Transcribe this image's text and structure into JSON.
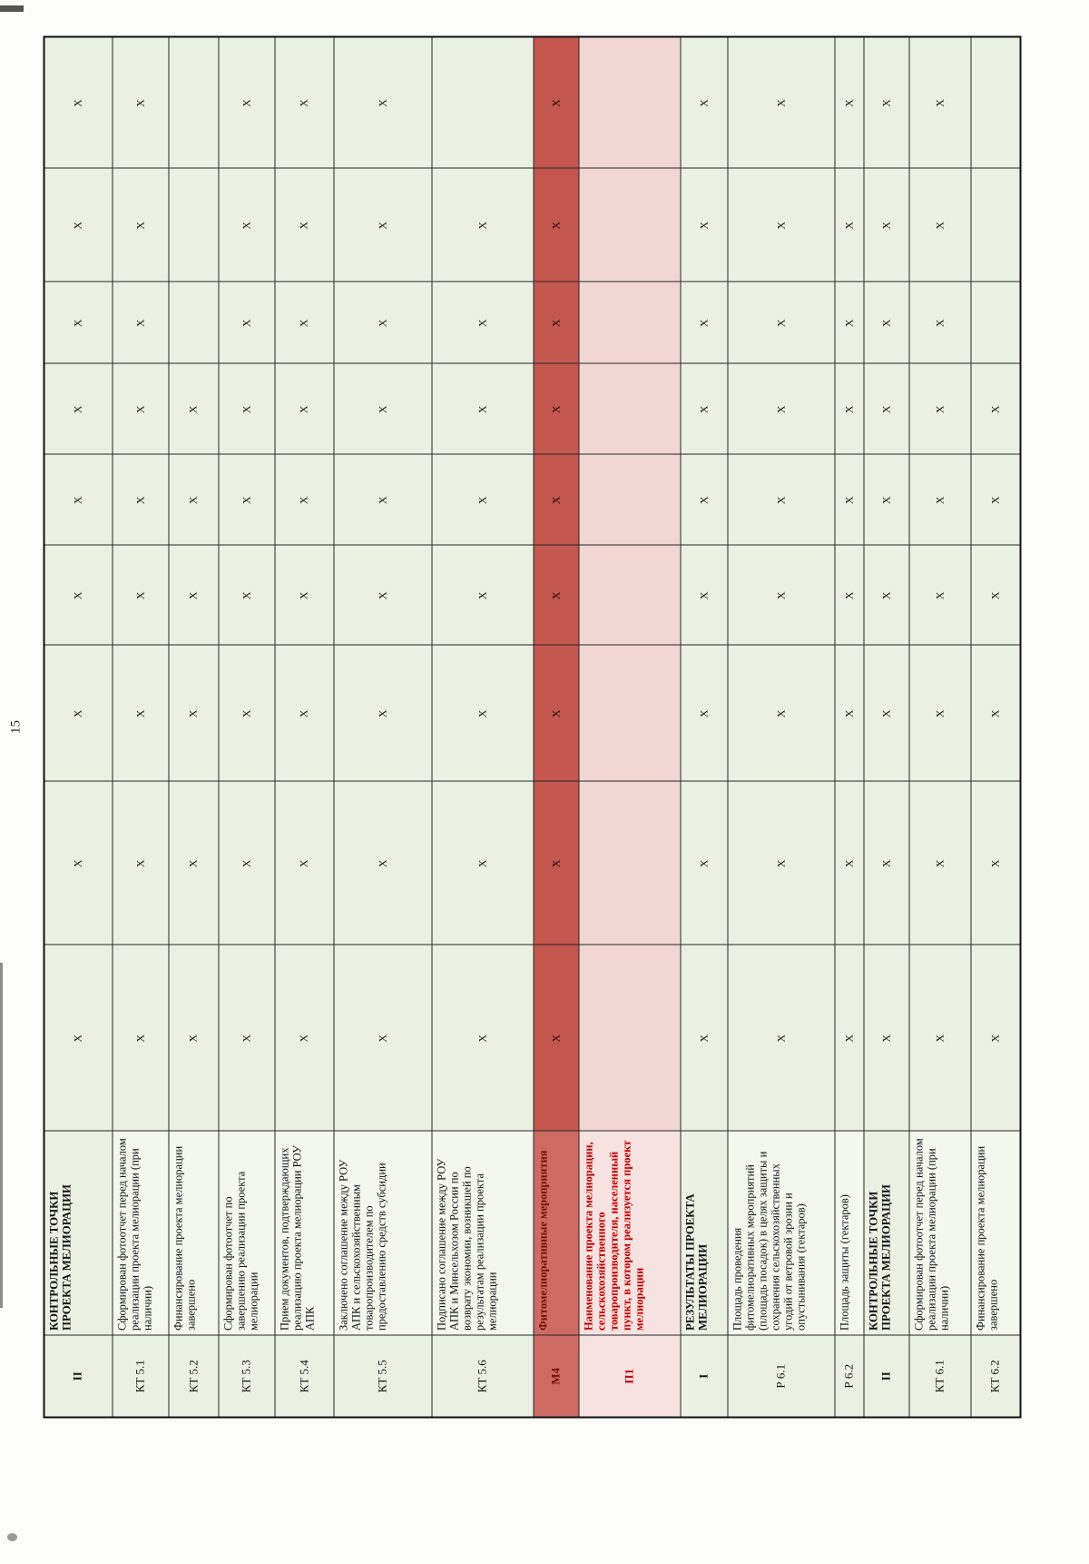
{
  "page": {
    "number": "15"
  },
  "document": {
    "kind": "scanned-project-milestone-table",
    "x_mark": "X"
  },
  "colors": {
    "row_green": "#eaf1e2",
    "row_green_desc": "#f3f7ee",
    "row_salmon": "#c4574e",
    "row_salmon_text": "#70100b",
    "row_pink": "#f6e2e0",
    "row_pink_text": "#c00000",
    "grid_line": "#262626"
  },
  "table": {
    "x_columns_count": 9,
    "rows": [
      {
        "code": "II",
        "desc": "КОНТРОЛЬНЫЕ ТОЧКИ ПРОЕКТА МЕЛИОРАЦИИ",
        "style": "section",
        "x": [
          1,
          1,
          1,
          1,
          1,
          1,
          1,
          1,
          1
        ]
      },
      {
        "code": "КТ 5.1",
        "desc": "Сформирован фотоотчет перед началом реализации проекта мелиорации (при наличии)",
        "style": "normal",
        "x": [
          1,
          1,
          1,
          1,
          1,
          1,
          1,
          1,
          1
        ]
      },
      {
        "code": "КТ 5.2",
        "desc": "Финансирование проекта мелиорации завершено",
        "style": "normal",
        "x": [
          1,
          1,
          1,
          1,
          1,
          1,
          0,
          0,
          0
        ]
      },
      {
        "code": "КТ 5.3",
        "desc": "Сформирован фотоотчет по завершению реализации проекта мелиорации",
        "style": "normal",
        "x": [
          1,
          1,
          1,
          1,
          1,
          1,
          1,
          1,
          1
        ]
      },
      {
        "code": "КТ 5.4",
        "desc": "Прием документов, подтверждающих реализацию проекта мелиорации РОУ АПК",
        "style": "normal",
        "x": [
          1,
          1,
          1,
          1,
          1,
          1,
          1,
          1,
          1
        ]
      },
      {
        "code": "КТ 5.5",
        "desc": "Заключено соглашение между РОУ АПК и сельскохозяйственным товаропроизводителем по предоставлению средств субсидии",
        "style": "normal",
        "x": [
          1,
          1,
          1,
          1,
          1,
          1,
          1,
          1,
          1
        ]
      },
      {
        "code": "КТ 5.6",
        "desc": "Подписано соглашение между РОУ АПК и Минсельхозом России по возврату экономии, возникшей по результатам реализации проекта мелиорации",
        "style": "normal",
        "x": [
          1,
          1,
          1,
          1,
          1,
          1,
          1,
          1,
          0
        ]
      },
      {
        "code": "М4",
        "desc": "Фитомелиоративные мероприятия",
        "style": "m4",
        "x": [
          1,
          1,
          1,
          1,
          1,
          1,
          1,
          1,
          1
        ]
      },
      {
        "code": "П1",
        "desc": "Наименование проекта мелиорации, сельскохозяйственного товаропроизводителя, населенный пункт, в котором реализуется проект мелиорации",
        "style": "p1",
        "x": [
          0,
          0,
          0,
          0,
          0,
          0,
          0,
          0,
          0
        ]
      },
      {
        "code": "I",
        "desc": "РЕЗУЛЬТАТЫ ПРОЕКТА МЕЛИОРАЦИИ",
        "style": "section",
        "x": [
          1,
          1,
          1,
          1,
          1,
          1,
          1,
          1,
          1
        ]
      },
      {
        "code": "Р 6.1",
        "desc": "Площадь проведения фитомелиоративных мероприятий (площадь посадок) в целях защиты и сохранения сельскохозяйственных угодий от ветровой эрозии и опустынивания (гектаров)",
        "style": "normal",
        "x": [
          1,
          1,
          1,
          1,
          1,
          1,
          1,
          1,
          1
        ]
      },
      {
        "code": "Р 6.2",
        "desc": "Площадь защиты (гектаров)",
        "style": "normal",
        "x": [
          1,
          1,
          1,
          1,
          1,
          1,
          1,
          1,
          1
        ]
      },
      {
        "code": "II",
        "desc": "КОНТРОЛЬНЫЕ ТОЧКИ ПРОЕКТА МЕЛИОРАЦИИ",
        "style": "section",
        "x": [
          1,
          1,
          1,
          1,
          1,
          1,
          1,
          1,
          1
        ]
      },
      {
        "code": "КТ 6.1",
        "desc": "Сформирован фотоотчет перед началом реализации проекта мелиорации (при наличии)",
        "style": "normal",
        "x": [
          1,
          1,
          1,
          1,
          1,
          1,
          1,
          1,
          1
        ]
      },
      {
        "code": "КТ 6.2",
        "desc": "Финансирование проекта мелиорации завершено",
        "style": "normal",
        "x": [
          1,
          1,
          1,
          1,
          1,
          1,
          0,
          0,
          0
        ]
      }
    ]
  }
}
